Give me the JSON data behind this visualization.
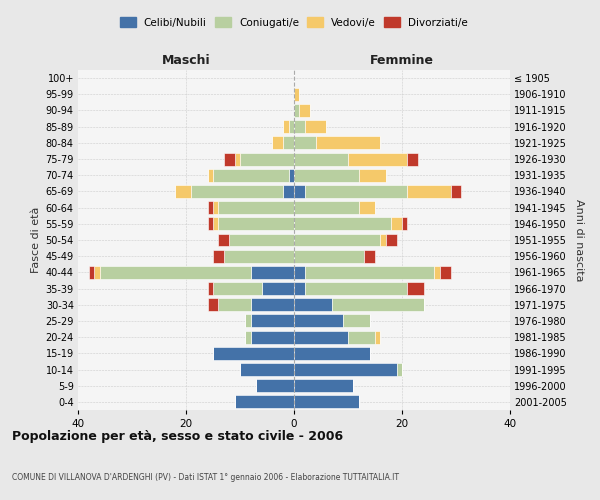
{
  "age_groups": [
    "0-4",
    "5-9",
    "10-14",
    "15-19",
    "20-24",
    "25-29",
    "30-34",
    "35-39",
    "40-44",
    "45-49",
    "50-54",
    "55-59",
    "60-64",
    "65-69",
    "70-74",
    "75-79",
    "80-84",
    "85-89",
    "90-94",
    "95-99",
    "100+"
  ],
  "birth_years": [
    "2001-2005",
    "1996-2000",
    "1991-1995",
    "1986-1990",
    "1981-1985",
    "1976-1980",
    "1971-1975",
    "1966-1970",
    "1961-1965",
    "1956-1960",
    "1951-1955",
    "1946-1950",
    "1941-1945",
    "1936-1940",
    "1931-1935",
    "1926-1930",
    "1921-1925",
    "1916-1920",
    "1911-1915",
    "1906-1910",
    "≤ 1905"
  ],
  "males": {
    "celibi": [
      11,
      7,
      10,
      15,
      8,
      8,
      8,
      6,
      8,
      0,
      0,
      0,
      0,
      2,
      1,
      0,
      0,
      0,
      0,
      0,
      0
    ],
    "coniugati": [
      0,
      0,
      0,
      0,
      1,
      1,
      6,
      9,
      28,
      13,
      12,
      14,
      14,
      17,
      14,
      10,
      2,
      1,
      0,
      0,
      0
    ],
    "vedovi": [
      0,
      0,
      0,
      0,
      0,
      0,
      0,
      0,
      1,
      0,
      0,
      1,
      1,
      3,
      1,
      1,
      2,
      1,
      0,
      0,
      0
    ],
    "divorziati": [
      0,
      0,
      0,
      0,
      0,
      0,
      2,
      1,
      1,
      2,
      2,
      1,
      1,
      0,
      0,
      2,
      0,
      0,
      0,
      0,
      0
    ]
  },
  "females": {
    "nubili": [
      12,
      11,
      19,
      14,
      10,
      9,
      7,
      2,
      2,
      0,
      0,
      0,
      0,
      2,
      0,
      0,
      0,
      0,
      0,
      0,
      0
    ],
    "coniugate": [
      0,
      0,
      1,
      0,
      5,
      5,
      17,
      19,
      24,
      13,
      16,
      18,
      12,
      19,
      12,
      10,
      4,
      2,
      1,
      0,
      0
    ],
    "vedove": [
      0,
      0,
      0,
      0,
      1,
      0,
      0,
      0,
      1,
      0,
      1,
      2,
      3,
      8,
      5,
      11,
      12,
      4,
      2,
      1,
      0
    ],
    "divorziate": [
      0,
      0,
      0,
      0,
      0,
      0,
      0,
      3,
      2,
      2,
      2,
      1,
      0,
      2,
      0,
      2,
      0,
      0,
      0,
      0,
      0
    ]
  },
  "colors": {
    "celibi": "#4472a8",
    "coniugati": "#b8cfa0",
    "vedovi": "#f5c96a",
    "divorziati": "#c0392b"
  },
  "xlim": 40,
  "title": "Popolazione per età, sesso e stato civile - 2006",
  "subtitle": "COMUNE DI VILLANOVA D'ARDENGHI (PV) - Dati ISTAT 1° gennaio 2006 - Elaborazione TUTTAITALIA.IT",
  "xlabel_left": "Maschi",
  "xlabel_right": "Femmine",
  "ylabel_left": "Fasce di età",
  "ylabel_right": "Anni di nascita",
  "bg_color": "#e8e8e8",
  "plot_bg": "#f5f5f5",
  "legend_labels": [
    "Celibi/Nubili",
    "Coniugati/e",
    "Vedovi/e",
    "Divorziati/e"
  ]
}
